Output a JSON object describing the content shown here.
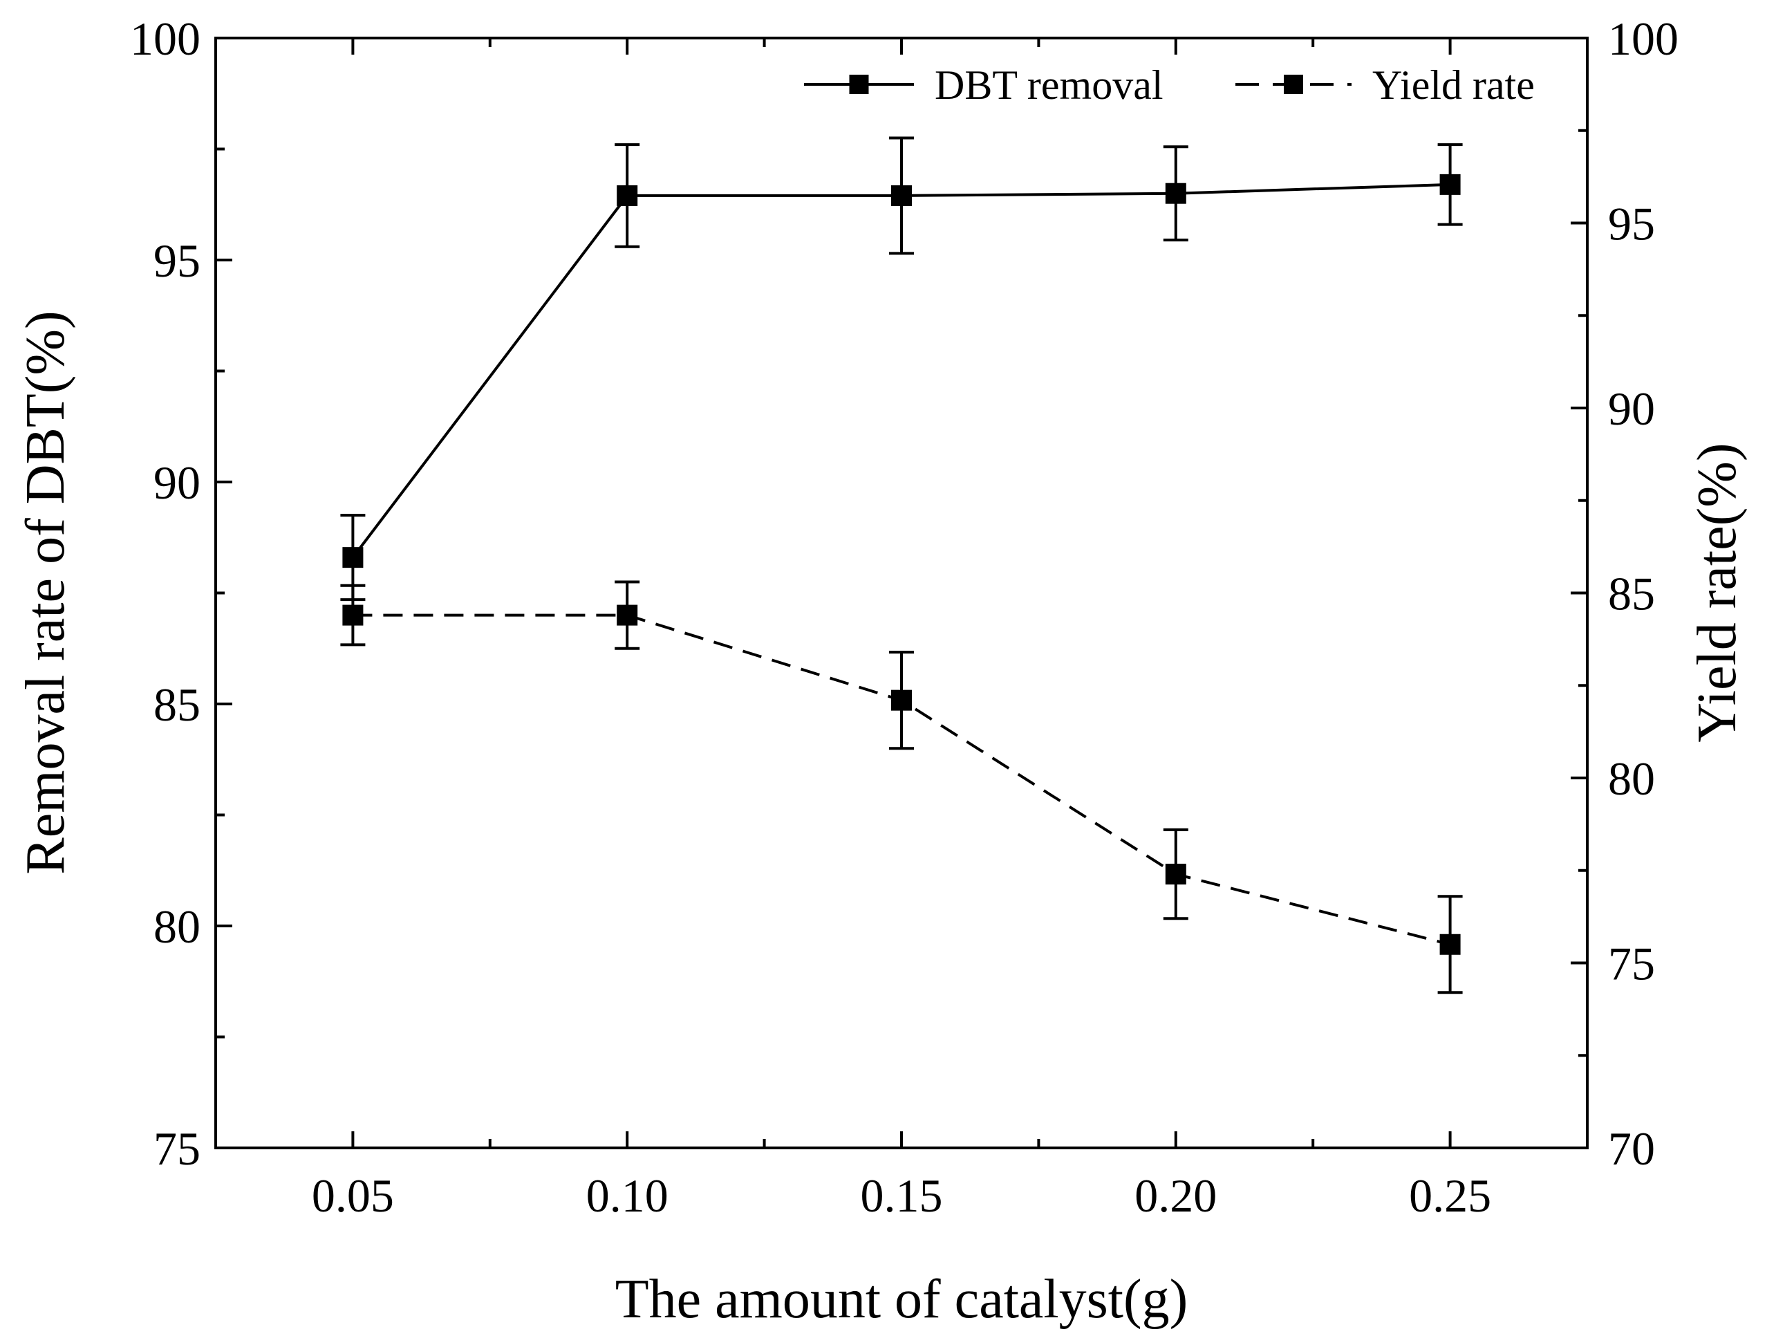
{
  "chart_data": {
    "type": "line",
    "x": [
      0.05,
      0.1,
      0.15,
      0.2,
      0.25
    ],
    "x_tick_labels": [
      "0.05",
      "0.10",
      "0.15",
      "0.20",
      "0.25"
    ],
    "xlim": [
      0.025,
      0.275
    ],
    "xlabel": "The amount of catalyst(g)",
    "ylabel": "Removal rate of DBT(%)",
    "ylim": [
      75,
      100
    ],
    "y_ticks": [
      75,
      80,
      85,
      90,
      95,
      100
    ],
    "y_tick_labels": [
      "75",
      "80",
      "85",
      "90",
      "95",
      "100"
    ],
    "y2label": "Yield rate(%)",
    "y2lim": [
      70,
      100
    ],
    "y2_ticks": [
      70,
      75,
      80,
      85,
      90,
      95,
      100
    ],
    "y2_tick_labels": [
      "70",
      "75",
      "80",
      "85",
      "90",
      "95",
      "100"
    ],
    "legend_position": "top-right",
    "series": [
      {
        "name": "DBT removal",
        "axis": "left",
        "line_style": "solid",
        "marker": "square",
        "values": [
          88.3,
          96.45,
          96.45,
          96.5,
          96.7
        ],
        "errors": [
          0.95,
          1.15,
          1.3,
          1.05,
          0.9
        ]
      },
      {
        "name": "Yield rate",
        "axis": "right",
        "line_style": "dashed",
        "marker": "square",
        "values": [
          84.4,
          84.4,
          82.1,
          77.4,
          75.5
        ],
        "errors": [
          0.8,
          0.9,
          1.3,
          1.2,
          1.3
        ]
      }
    ],
    "grid": false,
    "color": "#000000"
  }
}
